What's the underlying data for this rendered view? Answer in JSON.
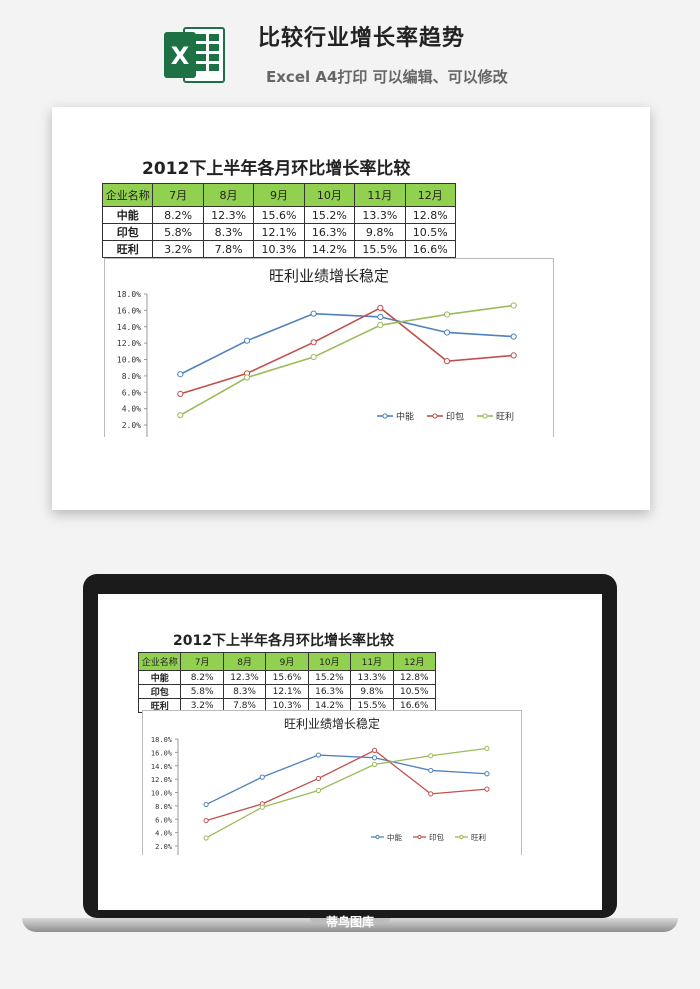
{
  "header": {
    "title": "比较行业增长率趋势",
    "subtitle": "Excel A4打印 可以编辑、可以修改",
    "icon": "excel-icon",
    "icon_letter": "X"
  },
  "sheet": {
    "title": "2012下上半年各月环比增长率比较",
    "header_first": "企业名称",
    "months": [
      "7月",
      "8月",
      "9月",
      "10月",
      "11月",
      "12月"
    ],
    "rows": [
      {
        "name": "中能",
        "cells": [
          "8.2%",
          "12.3%",
          "15.6%",
          "15.2%",
          "13.3%",
          "12.8%"
        ]
      },
      {
        "name": "印包",
        "cells": [
          "5.8%",
          "8.3%",
          "12.1%",
          "16.3%",
          "9.8%",
          "10.5%"
        ]
      },
      {
        "name": "旺利",
        "cells": [
          "3.2%",
          "7.8%",
          "10.3%",
          "14.2%",
          "15.5%",
          "16.6%"
        ]
      }
    ]
  },
  "chart_data": {
    "type": "line",
    "title": "旺利业绩增长稳定",
    "categories": [
      "7月",
      "8月",
      "9月",
      "10月",
      "11月",
      "12月"
    ],
    "y_ticks": [
      "2.0%",
      "4.0%",
      "6.0%",
      "8.0%",
      "10.0%",
      "12.0%",
      "14.0%",
      "16.0%",
      "18.0%"
    ],
    "ylim": [
      2,
      18
    ],
    "legend_position": "bottom-right",
    "series": [
      {
        "name": "中能",
        "color": "#4f81bd",
        "values": [
          8.2,
          12.3,
          15.6,
          15.2,
          13.3,
          12.8
        ]
      },
      {
        "name": "印包",
        "color": "#c0504d",
        "values": [
          5.8,
          8.3,
          12.1,
          16.3,
          9.8,
          10.5
        ]
      },
      {
        "name": "旺利",
        "color": "#9bbb59",
        "values": [
          3.2,
          7.8,
          10.3,
          14.2,
          15.5,
          16.6
        ]
      }
    ]
  },
  "colors": {
    "header_fill": "#92d050",
    "excel_green": "#1e7145"
  },
  "watermark": "蒂鸟图库"
}
